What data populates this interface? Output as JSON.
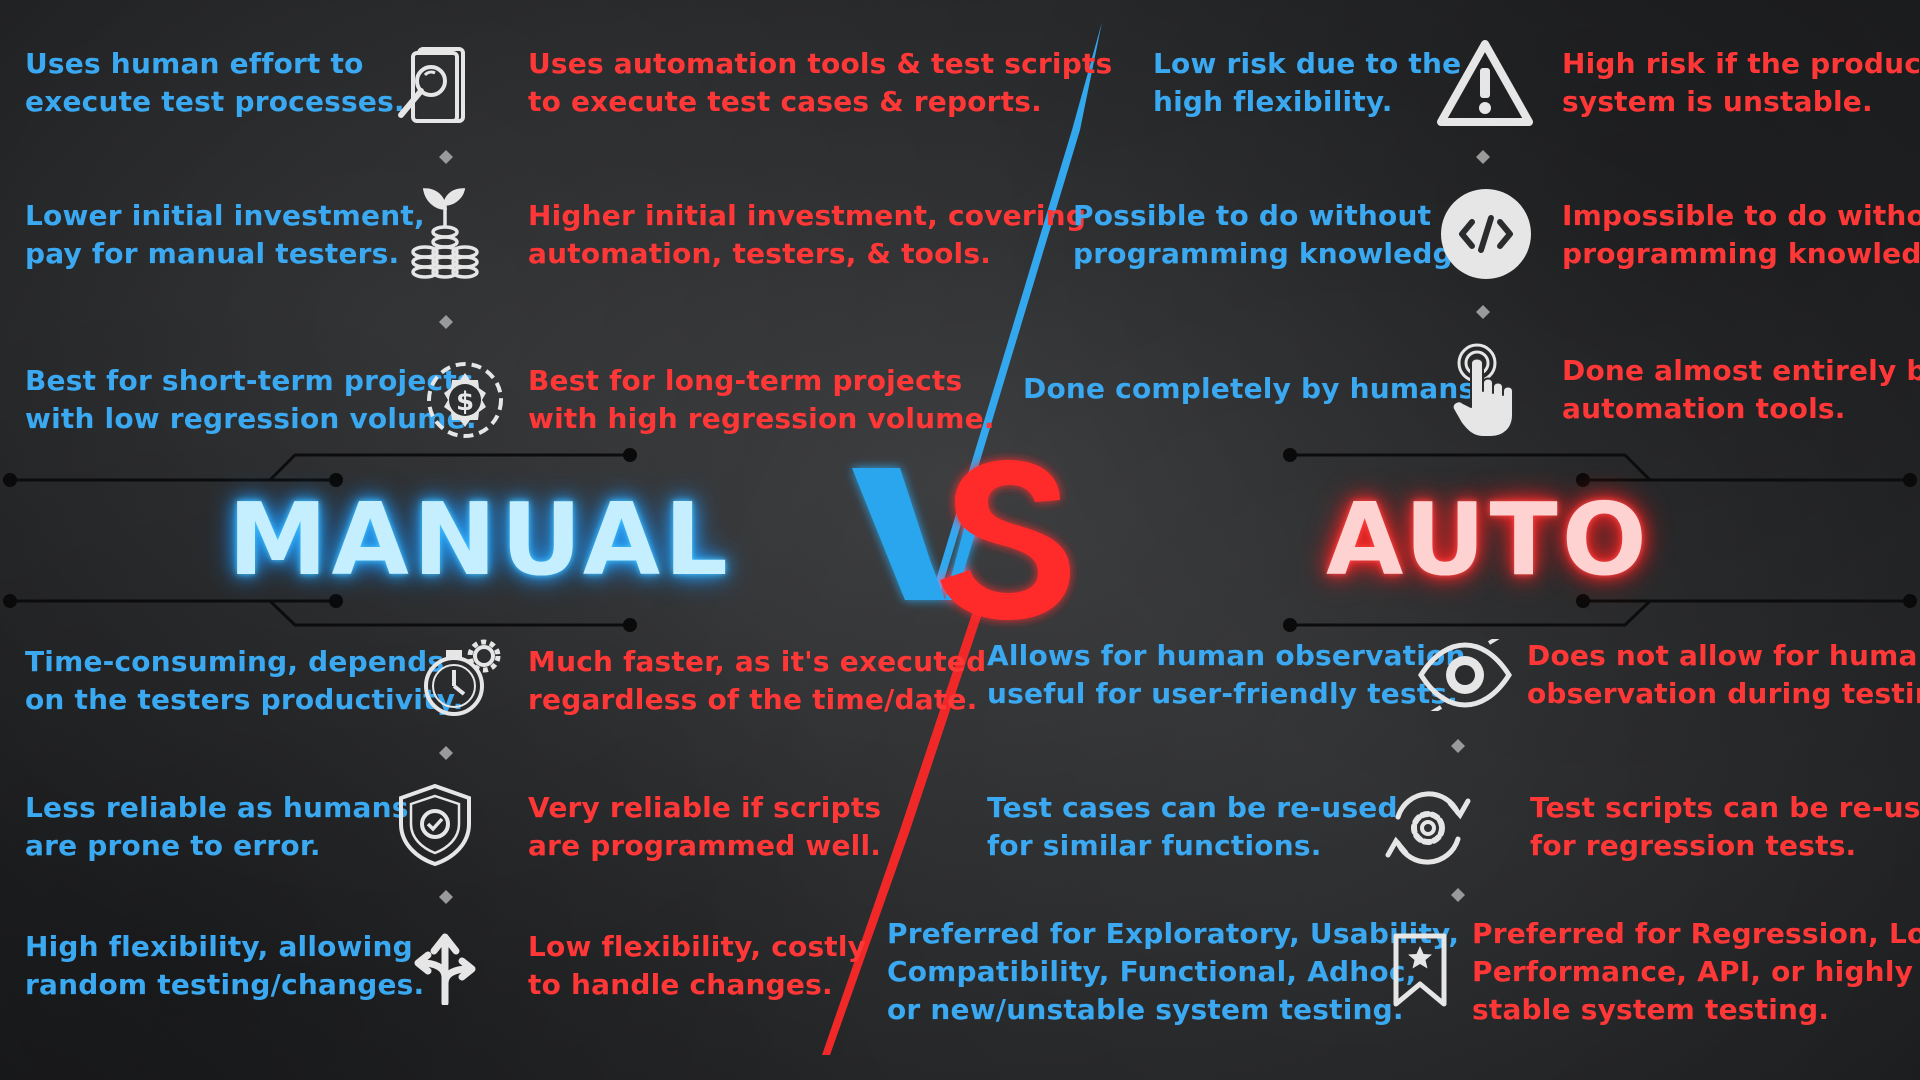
{
  "titles": {
    "left": "MANUAL",
    "vs": "VS",
    "right": "AUTO"
  },
  "colors": {
    "manual": "#3aa9f2",
    "auto": "#ff3737",
    "icon": "#e6e6e6"
  },
  "left_rows": [
    {
      "icon": "magnifier-document-icon",
      "manual": [
        "Uses human effort to",
        "execute test processes."
      ],
      "auto": [
        "Uses automation tools & test scripts",
        "to execute test cases & reports."
      ]
    },
    {
      "icon": "plant-coins-icon",
      "manual": [
        "Lower initial investment,",
        "pay for manual testers."
      ],
      "auto": [
        "Higher initial investment, covering",
        "automation, testers, & tools."
      ]
    },
    {
      "icon": "dollar-gear-icon",
      "manual": [
        "Best for short-term projects",
        "with low regression volume."
      ],
      "auto": [
        "Best for long-term projects",
        "with high regression volume."
      ]
    },
    {
      "icon": "stopwatch-gear-icon",
      "manual": [
        "Time-consuming, depends",
        "on the testers productivity."
      ],
      "auto": [
        "Much faster, as it's executed",
        "regardless of the time/date."
      ]
    },
    {
      "icon": "shield-check-icon",
      "manual": [
        "Less reliable as humans",
        "are prone to error."
      ],
      "auto": [
        "Very reliable if scripts",
        "are programmed well."
      ]
    },
    {
      "icon": "split-arrows-icon",
      "manual": [
        "High flexibility, allowing",
        "random testing/changes."
      ],
      "auto": [
        "Low flexibility, costly",
        "to handle changes."
      ]
    }
  ],
  "right_rows": [
    {
      "icon": "warning-triangle-icon",
      "manual": [
        "Low risk due to the",
        "high flexibility."
      ],
      "auto": [
        "High risk if the products'",
        "system is unstable."
      ]
    },
    {
      "icon": "code-icon",
      "manual": [
        "Possible to do without",
        "programming knowledge."
      ],
      "auto": [
        "Impossible to do without",
        "programming knowledge."
      ]
    },
    {
      "icon": "touch-hand-icon",
      "manual": [
        "Done completely by humans."
      ],
      "auto": [
        "Done almost entirely by",
        "automation tools."
      ]
    },
    {
      "icon": "eye-icon",
      "manual": [
        "Allows for human observation,",
        "useful for user-friendly tests."
      ],
      "auto": [
        "Does not allow for human",
        "observation during testing."
      ]
    },
    {
      "icon": "refresh-gear-icon",
      "manual": [
        "Test cases can be re-used",
        "for similar functions."
      ],
      "auto": [
        "Test scripts can be re-used",
        "for regression tests."
      ]
    },
    {
      "icon": "bookmark-star-icon",
      "manual": [
        "Preferred for Exploratory, Usability,",
        "Compatibility, Functional, Adhoc,",
        "or new/unstable system testing."
      ],
      "auto": [
        "Preferred for Regression, Load,",
        "Performance, API, or highly",
        "stable system testing."
      ]
    }
  ]
}
